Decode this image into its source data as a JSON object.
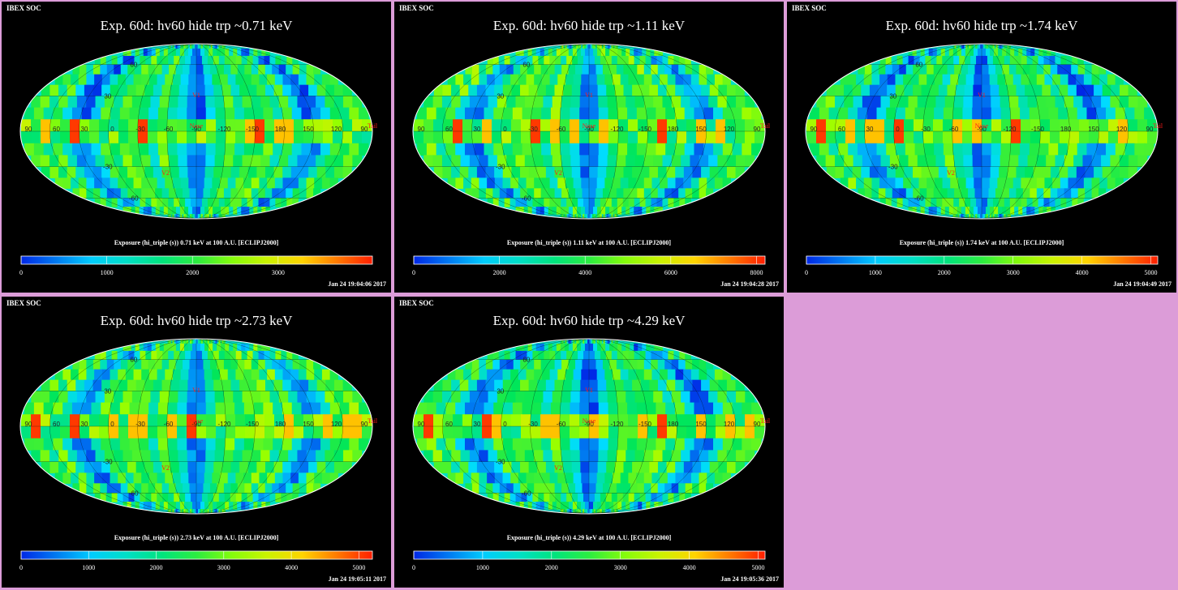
{
  "chart_data": [
    {
      "type": "heatmap",
      "header": "IBEX SOC",
      "title": "Exp.   60d: hv60 hide trp ~0.71 keV",
      "colorbar_label": "Exposure (hi_triple (s))  0.71 keV at 100 A.U. [ECLIPJ2000]",
      "colorbar_ticks": [
        "0",
        "1000",
        "2000",
        "3000"
      ],
      "vmax": 4100,
      "timestamp": "Jan 24 19:04:06 2017",
      "lon_labels": [
        "90",
        "60",
        "30",
        "0",
        "-30",
        "-60",
        "-90",
        "-120",
        "-150",
        "180",
        "150",
        "120",
        "90"
      ],
      "lat_labels": [
        "60",
        "30",
        "-30",
        "-60"
      ],
      "markers": [
        "V1",
        "V2",
        "Nose",
        "Tail"
      ],
      "projection": "Mollweide (ecliptic)"
    },
    {
      "type": "heatmap",
      "header": "IBEX SOC",
      "title": "Exp.   60d: hv60 hide trp ~1.11 keV",
      "colorbar_label": "Exposure (hi_triple (s))  1.11 keV at 100 A.U. [ECLIPJ2000]",
      "colorbar_ticks": [
        "0",
        "2000",
        "4000",
        "6000",
        "8000"
      ],
      "vmax": 8200,
      "timestamp": "Jan 24 19:04:28 2017",
      "lon_labels": [
        "90",
        "60",
        "30",
        "0",
        "-30",
        "-60",
        "-90",
        "-120",
        "-150",
        "180",
        "150",
        "120",
        "90"
      ],
      "lat_labels": [
        "60",
        "30",
        "-30",
        "-60"
      ],
      "markers": [
        "V1",
        "V2",
        "Nose",
        "Tail"
      ],
      "projection": "Mollweide (ecliptic)"
    },
    {
      "type": "heatmap",
      "header": "IBEX SOC",
      "title": "Exp.   60d: hv60 hide trp ~1.74 keV",
      "colorbar_label": "Exposure (hi_triple (s))  1.74 keV at 100 A.U. [ECLIPJ2000]",
      "colorbar_ticks": [
        "0",
        "1000",
        "2000",
        "3000",
        "4000",
        "5000"
      ],
      "vmax": 5100,
      "timestamp": "Jan 24 19:04:49 2017",
      "lon_labels": [
        "90",
        "60",
        "30",
        "0",
        "-30",
        "-60",
        "-90",
        "-120",
        "-150",
        "180",
        "150",
        "120",
        "90"
      ],
      "lat_labels": [
        "60",
        "30",
        "-30",
        "-60"
      ],
      "markers": [
        "V1",
        "V2",
        "Nose",
        "Tail"
      ],
      "projection": "Mollweide (ecliptic)"
    },
    {
      "type": "heatmap",
      "header": "IBEX SOC",
      "title": "Exp.   60d: hv60 hide trp ~2.73 keV",
      "colorbar_label": "Exposure (hi_triple (s))  2.73 keV at 100 A.U. [ECLIPJ2000]",
      "colorbar_ticks": [
        "0",
        "1000",
        "2000",
        "3000",
        "4000",
        "5000"
      ],
      "vmax": 5200,
      "timestamp": "Jan 24 19:05:11 2017",
      "lon_labels": [
        "90",
        "60",
        "30",
        "0",
        "-30",
        "-60",
        "-90",
        "-120",
        "-150",
        "180",
        "150",
        "120",
        "90"
      ],
      "lat_labels": [
        "60",
        "30",
        "-30",
        "-60"
      ],
      "markers": [
        "V1",
        "V2",
        "Nose",
        "Tail"
      ],
      "projection": "Mollweide (ecliptic)"
    },
    {
      "type": "heatmap",
      "header": "IBEX SOC",
      "title": "Exp.   60d: hv60 hide trp ~4.29 keV",
      "colorbar_label": "Exposure (hi_triple (s))  4.29 keV at 100 A.U. [ECLIPJ2000]",
      "colorbar_ticks": [
        "0",
        "1000",
        "2000",
        "3000",
        "4000",
        "5000"
      ],
      "vmax": 5100,
      "timestamp": "Jan 24 19:05:36 2017",
      "lon_labels": [
        "90",
        "60",
        "30",
        "0",
        "-30",
        "-60",
        "-90",
        "-120",
        "-150",
        "180",
        "150",
        "120",
        "90"
      ],
      "lat_labels": [
        "60",
        "30",
        "-30",
        "-60"
      ],
      "markers": [
        "V1",
        "V2",
        "Nose",
        "Tail"
      ],
      "projection": "Mollweide (ecliptic)"
    }
  ]
}
